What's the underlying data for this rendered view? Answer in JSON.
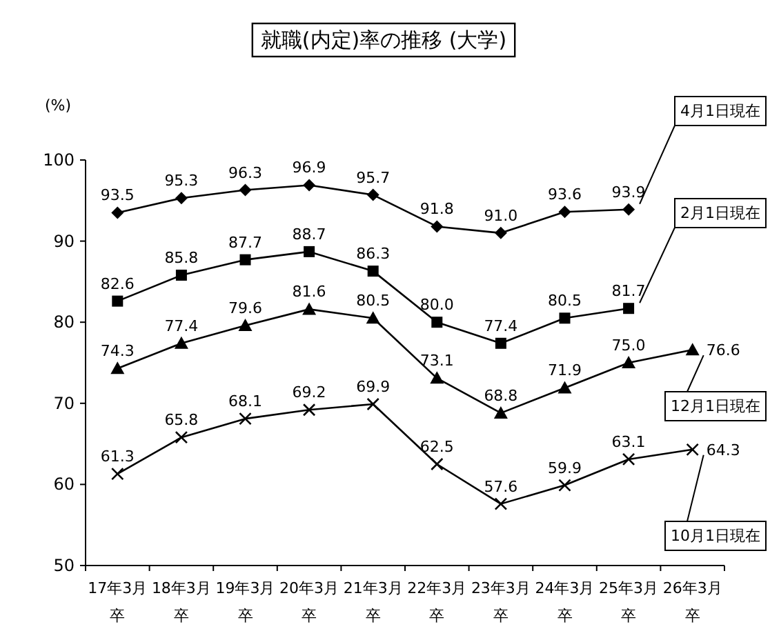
{
  "chart_data": {
    "type": "line",
    "title": "就職(内定)率の推移 (大学)",
    "ylabel": "(%)",
    "categories": [
      "17年3月卒",
      "18年3月卒",
      "19年3月卒",
      "20年3月卒",
      "21年3月卒",
      "22年3月卒",
      "23年3月卒",
      "24年3月卒",
      "25年3月卒",
      "26年3月卒"
    ],
    "ylim": [
      50,
      100
    ],
    "yticks": [
      50,
      60,
      70,
      80,
      90,
      100
    ],
    "series": [
      {
        "name": "4月1日現在",
        "color": "#000000",
        "marker": "diamond",
        "values": [
          93.5,
          95.3,
          96.3,
          96.9,
          95.7,
          91.8,
          91.0,
          93.6,
          93.9,
          null
        ],
        "value_labels": [
          "93.5",
          "95.3",
          "96.3",
          "96.9",
          "95.7",
          "91.8",
          "91.0",
          "93.6",
          "93.9",
          null
        ]
      },
      {
        "name": "2月1日現在",
        "color": "#000000",
        "marker": "square",
        "values": [
          82.6,
          85.8,
          87.7,
          88.7,
          86.3,
          80.0,
          77.4,
          80.5,
          81.7,
          null
        ],
        "value_labels": [
          "82.6",
          "85.8",
          "87.7",
          "88.7",
          "86.3",
          "80.0",
          "77.4",
          "80.5",
          "81.7",
          null
        ]
      },
      {
        "name": "12月1日現在",
        "color": "#000000",
        "marker": "triangle",
        "values": [
          74.3,
          77.4,
          79.6,
          81.6,
          80.5,
          73.1,
          68.8,
          71.9,
          75.0,
          76.6
        ],
        "value_labels": [
          "74.3",
          "77.4",
          "79.6",
          "81.6",
          "80.5",
          "73.1",
          "68.8",
          "71.9",
          "75.0",
          "76.6"
        ]
      },
      {
        "name": "10月1日現在",
        "color": "#000000",
        "marker": "cross",
        "values": [
          61.3,
          65.8,
          68.1,
          69.2,
          69.9,
          62.5,
          57.6,
          59.9,
          63.1,
          64.3
        ],
        "value_labels": [
          "61.3",
          "65.8",
          "68.1",
          "69.2",
          "69.9",
          "62.5",
          "57.6",
          "59.9",
          "63.1",
          "64.3"
        ]
      }
    ]
  }
}
